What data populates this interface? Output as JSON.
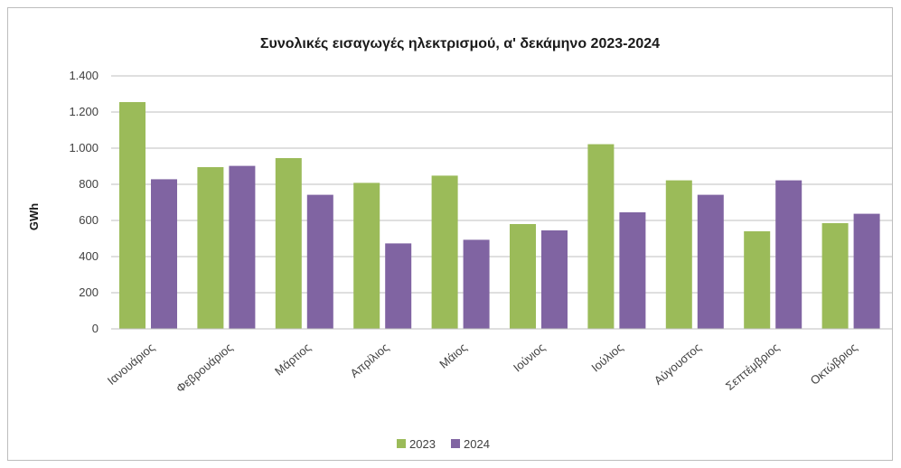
{
  "chart_data": {
    "type": "bar",
    "title": "Συνολικές εισαγωγές ηλεκτρισμού, α' δεκάμηνο 2023-2024",
    "xlabel": "",
    "ylabel": "GWh",
    "ylim": [
      0,
      1400
    ],
    "yticks": [
      0,
      200,
      400,
      600,
      800,
      1000,
      1200,
      1400
    ],
    "ytick_labels": [
      "0",
      "200",
      "400",
      "600",
      "800",
      "1.000",
      "1.200",
      "1.400"
    ],
    "grid": true,
    "legend_position": "bottom",
    "categories": [
      "Ιανουάριος",
      "Φεβρουάριος",
      "Μάρτιος",
      "Απρίλιος",
      "Μάιος",
      "Ιούνιος",
      "Ιούλιος",
      "Αύγουστος",
      "Σεπτέμβριος",
      "Οκτώβριος"
    ],
    "series": [
      {
        "name": "2023",
        "color": "#9bbb59",
        "values": [
          1255,
          895,
          945,
          808,
          848,
          580,
          1022,
          822,
          540,
          585
        ]
      },
      {
        "name": "2024",
        "color": "#8064a2",
        "values": [
          828,
          902,
          742,
          473,
          493,
          545,
          645,
          742,
          822,
          637
        ]
      }
    ]
  }
}
